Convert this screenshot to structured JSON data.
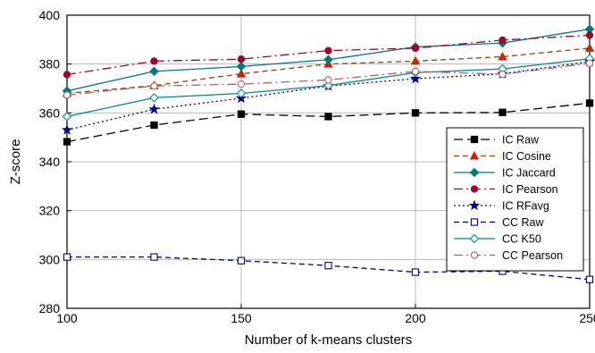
{
  "chart_data": {
    "type": "line",
    "title": "",
    "xlabel": "Number of k-means clusters",
    "ylabel": "Z-score",
    "x": [
      100,
      125,
      150,
      175,
      200,
      225,
      250
    ],
    "xlim": [
      100,
      250
    ],
    "ylim": [
      280,
      400
    ],
    "x_ticks": [
      100,
      150,
      200,
      250
    ],
    "y_ticks": [
      280,
      300,
      320,
      340,
      360,
      380,
      400
    ],
    "grid": true,
    "legend_position": "right",
    "series": [
      {
        "name": "IC Raw",
        "values": [
          348.2,
          355.0,
          359.5,
          358.5,
          360.0,
          360.2,
          364.0
        ],
        "color": "#000000",
        "dash": "dashed-long",
        "marker": "filled-square"
      },
      {
        "name": "IC Cosine",
        "values": [
          368.0,
          371.2,
          376.0,
          380.0,
          381.2,
          383.0,
          386.5
        ],
        "color": "#8b4513",
        "dash": "dashed-short",
        "marker": "filled-triangle",
        "marker_color": "#cc2200"
      },
      {
        "name": "IC Jaccard",
        "values": [
          369.0,
          377.0,
          379.0,
          381.8,
          387.0,
          388.6,
          394.3
        ],
        "color": "#007a7a",
        "dash": "solid",
        "marker": "filled-diamond"
      },
      {
        "name": "IC Pearson",
        "values": [
          375.7,
          381.2,
          382.0,
          385.5,
          386.5,
          389.8,
          391.8
        ],
        "color": "#a0002a",
        "dash": "dash-dot",
        "marker": "filled-circle"
      },
      {
        "name": "IC RFavg",
        "values": [
          353.0,
          361.5,
          366.0,
          371.0,
          374.0,
          376.0,
          381.0
        ],
        "color": "#000080",
        "dash": "dotted",
        "marker": "filled-star"
      },
      {
        "name": "CC Raw",
        "values": [
          301.0,
          301.0,
          299.5,
          297.5,
          294.8,
          295.2,
          291.8
        ],
        "color": "#000080",
        "dash": "dashed-short",
        "marker": "open-square"
      },
      {
        "name": "CC K50",
        "values": [
          358.5,
          366.2,
          368.0,
          371.2,
          376.5,
          378.0,
          382.2
        ],
        "color": "#008b8b",
        "dash": "solid",
        "marker": "open-diamond"
      },
      {
        "name": "CC Pearson",
        "values": [
          367.3,
          371.0,
          371.8,
          373.5,
          377.0,
          375.8,
          380.3
        ],
        "color": "#b06060",
        "dash": "dash-dot",
        "marker": "open-circle"
      }
    ]
  }
}
